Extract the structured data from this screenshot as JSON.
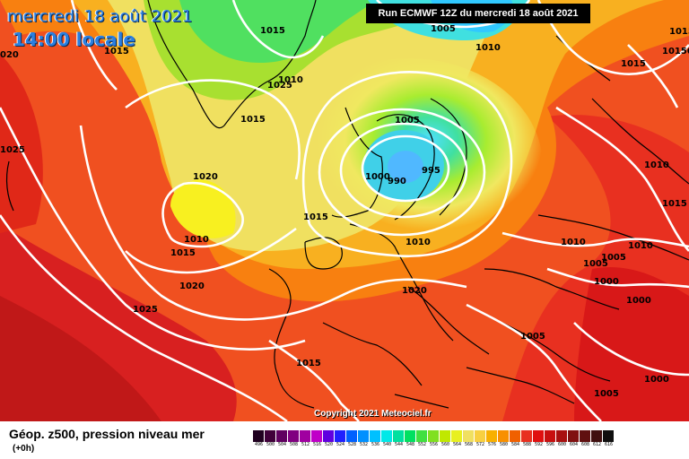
{
  "header": {
    "date_line": "mercredi 18 août 2021",
    "time_line": "14:00 locale",
    "run_info": "Run ECMWF 12Z du mercredi 18 août 2021"
  },
  "map": {
    "copyright": "Copyright 2021 Meteociel.fr",
    "isobar_labels": [
      {
        "id": "a",
        "text": "1015"
      },
      {
        "id": "b",
        "text": "1005"
      },
      {
        "id": "c",
        "text": "1010"
      },
      {
        "id": "d",
        "text": "1015"
      },
      {
        "id": "e",
        "text": "1010"
      },
      {
        "id": "f",
        "text": "1015"
      },
      {
        "id": "g",
        "text": "1020"
      },
      {
        "id": "h",
        "text": "1025"
      },
      {
        "id": "i",
        "text": "1025"
      },
      {
        "id": "j",
        "text": "1015"
      },
      {
        "id": "k",
        "text": "1005"
      },
      {
        "id": "l",
        "text": "1020"
      },
      {
        "id": "m",
        "text": "1010"
      },
      {
        "id": "n",
        "text": "1015"
      },
      {
        "id": "o",
        "text": "1000"
      },
      {
        "id": "p",
        "text": "990"
      },
      {
        "id": "q",
        "text": "995"
      },
      {
        "id": "r",
        "text": "1015"
      },
      {
        "id": "s",
        "text": "1010"
      },
      {
        "id": "t",
        "text": "1020"
      },
      {
        "id": "u",
        "text": "1020"
      },
      {
        "id": "v",
        "text": "1025"
      },
      {
        "id": "w",
        "text": "1015"
      },
      {
        "id": "x",
        "text": "1005"
      },
      {
        "id": "y",
        "text": "1010"
      },
      {
        "id": "z",
        "text": "1005"
      },
      {
        "id": "aa",
        "text": "1000"
      },
      {
        "id": "ab",
        "text": "1010"
      },
      {
        "id": "ac",
        "text": "1010"
      },
      {
        "id": "ad",
        "text": "1015"
      },
      {
        "id": "ae",
        "text": "1000"
      },
      {
        "id": "af",
        "text": "1005"
      },
      {
        "id": "ag",
        "text": "1000"
      },
      {
        "id": "ah",
        "text": "1015"
      },
      {
        "id": "ai",
        "text": "10150"
      },
      {
        "id": "aj",
        "text": "1005"
      },
      {
        "id": "ak",
        "text": "020"
      }
    ]
  },
  "legend": {
    "title": "Géop. z500, pression niveau mer",
    "subtitle": "(+0h)",
    "scale": [
      {
        "label": "496",
        "color": "#200020"
      },
      {
        "label": "500",
        "color": "#40003a"
      },
      {
        "label": "504",
        "color": "#600060"
      },
      {
        "label": "508",
        "color": "#800080"
      },
      {
        "label": "512",
        "color": "#a000a0"
      },
      {
        "label": "516",
        "color": "#c000c8"
      },
      {
        "label": "520",
        "color": "#6000e0"
      },
      {
        "label": "524",
        "color": "#2020ff"
      },
      {
        "label": "528",
        "color": "#0060ff"
      },
      {
        "label": "532",
        "color": "#0090ff"
      },
      {
        "label": "536",
        "color": "#00c0ff"
      },
      {
        "label": "540",
        "color": "#00e8e8"
      },
      {
        "label": "544",
        "color": "#00e0a0"
      },
      {
        "label": "548",
        "color": "#00e060"
      },
      {
        "label": "552",
        "color": "#40e040"
      },
      {
        "label": "556",
        "color": "#80e020"
      },
      {
        "label": "560",
        "color": "#c0e800"
      },
      {
        "label": "564",
        "color": "#e8f020"
      },
      {
        "label": "568",
        "color": "#f0e060"
      },
      {
        "label": "572",
        "color": "#f8d040"
      },
      {
        "label": "576",
        "color": "#f8b000"
      },
      {
        "label": "580",
        "color": "#f89000"
      },
      {
        "label": "584",
        "color": "#f06000"
      },
      {
        "label": "588",
        "color": "#e83020"
      },
      {
        "label": "592",
        "color": "#e01010"
      },
      {
        "label": "596",
        "color": "#c81010"
      },
      {
        "label": "600",
        "color": "#a81010"
      },
      {
        "label": "604",
        "color": "#801010"
      },
      {
        "label": "608",
        "color": "#601010"
      },
      {
        "label": "612",
        "color": "#401010"
      },
      {
        "label": "616",
        "color": "#101010"
      }
    ]
  }
}
